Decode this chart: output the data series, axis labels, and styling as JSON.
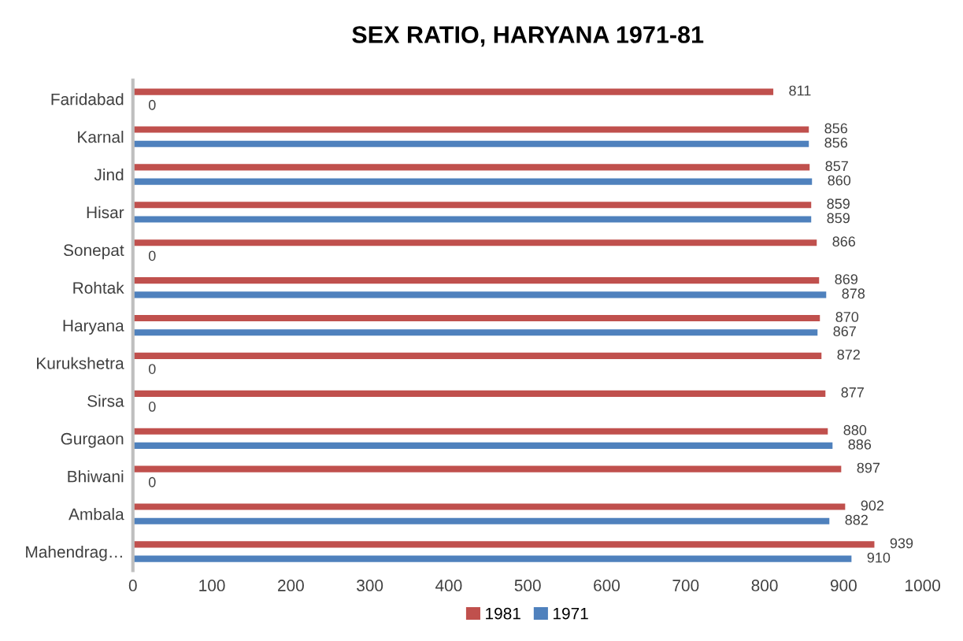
{
  "chart_data": {
    "type": "bar",
    "orientation": "horizontal",
    "title": "SEX RATIO, HARYANA 1971-81",
    "categories": [
      "Faridabad",
      "Karnal",
      "Jind",
      "Hisar",
      "Sonepat",
      "Rohtak",
      "Haryana",
      "Kurukshetra",
      "Sirsa",
      "Gurgaon",
      "Bhiwani",
      "Ambala",
      "Mahendrag…"
    ],
    "series": [
      {
        "name": "1981",
        "color": "#c0504d",
        "values": [
          811,
          856,
          857,
          859,
          866,
          869,
          870,
          872,
          877,
          880,
          897,
          902,
          939
        ]
      },
      {
        "name": "1971",
        "color": "#4f81bd",
        "values": [
          0,
          856,
          860,
          859,
          0,
          878,
          867,
          0,
          0,
          886,
          0,
          882,
          910
        ]
      }
    ],
    "xlim": [
      0,
      1000
    ],
    "xticks": [
      0,
      100,
      200,
      300,
      400,
      500,
      600,
      700,
      800,
      900,
      1000
    ],
    "data_labels": true,
    "legend": "bottom",
    "grid": false
  }
}
